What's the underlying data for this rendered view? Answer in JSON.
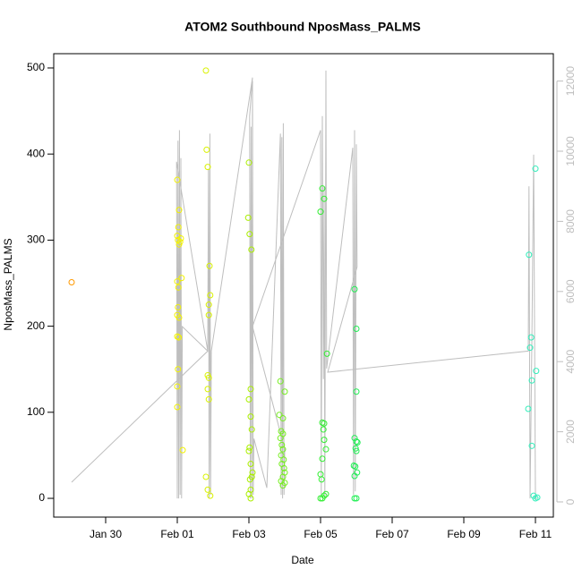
{
  "chart_data": {
    "type": "scatter",
    "title": "ATOM2 Southbound NposMass_PALMS",
    "x_label": "Date",
    "y_label": "NposMass_PALMS",
    "xlim": [
      -1.45,
      12.5
    ],
    "ylim": [
      -21.8,
      516.6
    ],
    "y2lim": [
      -434,
      12781
    ],
    "xticks": [
      {
        "value": 0,
        "label": "Jan 30"
      },
      {
        "value": 2,
        "label": "Feb 01"
      },
      {
        "value": 4,
        "label": "Feb 03"
      },
      {
        "value": 6,
        "label": "Feb 05"
      },
      {
        "value": 8,
        "label": "Feb 07"
      },
      {
        "value": 10,
        "label": "Feb 09"
      },
      {
        "value": 12,
        "label": "Feb 11"
      }
    ],
    "yticks": [
      0,
      100,
      200,
      300,
      400,
      500
    ],
    "y2ticks": [
      0,
      2000,
      4000,
      6000,
      8000,
      10000,
      12000
    ],
    "y2_color": "#bebebe",
    "series": [
      {
        "type": "line",
        "axis": "y2",
        "color": "#bebebe",
        "x": [
          -0.95,
          2.85,
          1.98,
          2.0,
          2.02,
          2.04,
          2.06,
          2.08,
          2.1,
          2.12,
          2.14,
          2.85,
          2.87,
          2.89,
          2.91,
          2.93,
          2.95,
          4.1,
          4.02,
          4.04,
          4.06,
          4.08,
          4.1,
          4.12,
          4.14,
          4.5,
          4.88,
          4.9,
          4.92,
          4.94,
          4.96,
          4.98,
          5.0,
          4.1,
          6.0,
          6.02,
          6.05,
          6.08,
          6.1,
          6.12,
          6.15,
          6.17,
          6.9,
          6.92,
          6.95,
          6.97,
          7.0,
          7.02,
          6.2,
          11.8,
          11.82,
          11.85,
          11.9,
          11.95,
          12.0,
          12.05
        ],
        "values": [
          560,
          4300,
          9700,
          100,
          10300,
          100,
          10600,
          200,
          9800,
          100,
          5000,
          4300,
          9500,
          100,
          10500,
          200,
          4300,
          12100,
          11000,
          100,
          10700,
          100,
          12000,
          200,
          1800,
          400,
          10500,
          200,
          10400,
          100,
          10800,
          200,
          1500,
          5000,
          10600,
          200,
          11000,
          3500,
          9000,
          100,
          12300,
          3800,
          10100,
          200,
          10600,
          300,
          10200,
          6700,
          3700,
          4300,
          9000,
          100,
          4500,
          9900,
          100,
          100
        ]
      },
      {
        "type": "scatter",
        "color": "#ff9900",
        "x": [
          -0.95
        ],
        "values": [
          251
        ]
      },
      {
        "type": "scatter",
        "color": "#f2f200",
        "x": [
          2.0,
          2.0,
          2.02,
          2.05,
          2.08,
          2.1,
          2.0,
          2.03,
          2.12,
          2.0,
          2.05,
          2.02,
          2.0,
          2.04,
          2.02,
          2.0,
          2.0,
          2.15,
          2.05,
          2.03
        ],
        "values": [
          370,
          305,
          300,
          295,
          298,
          302,
          252,
          245,
          256,
          213,
          210,
          222,
          188,
          187,
          150,
          130,
          106,
          56,
          335,
          315
        ]
      },
      {
        "type": "scatter",
        "color": "#d9f200",
        "x": [
          2.82,
          2.85,
          2.8,
          2.9,
          2.92,
          2.88,
          2.88,
          2.85,
          2.88,
          2.85,
          2.88,
          2.8,
          2.85,
          2.92
        ],
        "values": [
          405,
          385,
          497,
          270,
          236,
          225,
          213,
          143,
          140,
          127,
          115,
          25,
          10,
          3
        ]
      },
      {
        "type": "scatter",
        "color": "#aaee00",
        "x": [
          4.0,
          3.98,
          4.02,
          4.07,
          4.05,
          4.0,
          4.05,
          4.08,
          4.02,
          4.0,
          4.05,
          4.1,
          4.08,
          4.03,
          4.05,
          4.0,
          4.05
        ],
        "values": [
          390,
          326,
          307,
          289,
          127,
          115,
          95,
          80,
          59,
          55,
          40,
          30,
          25,
          22,
          10,
          5,
          0
        ]
      },
      {
        "type": "scatter",
        "color": "#77ee22",
        "x": [
          4.88,
          5.0,
          4.85,
          4.95,
          4.9,
          4.95,
          4.88,
          4.92,
          4.95,
          4.9,
          4.97,
          4.92,
          4.98,
          5.0,
          4.95,
          4.9,
          5.0,
          4.95
        ],
        "values": [
          136,
          124,
          97,
          93,
          78,
          75,
          70,
          62,
          57,
          50,
          45,
          40,
          35,
          30,
          25,
          20,
          18,
          15
        ]
      },
      {
        "type": "scatter",
        "color": "#33ee33",
        "x": [
          6.05,
          6.1,
          6.0,
          6.18,
          6.05,
          6.1,
          6.08,
          6.1,
          6.15,
          6.05,
          6.0,
          6.03,
          6.1,
          6.15,
          6.0,
          6.05
        ],
        "values": [
          360,
          348,
          333,
          168,
          88,
          87,
          80,
          68,
          57,
          46,
          28,
          22,
          3,
          5,
          0,
          0
        ]
      },
      {
        "type": "scatter",
        "color": "#22ee55",
        "x": [
          6.95,
          7.0,
          7.0,
          6.95,
          7.0,
          7.03,
          6.98,
          7.0,
          6.93,
          6.97,
          7.02,
          6.95,
          6.95,
          7.0
        ],
        "values": [
          243,
          197,
          124,
          70,
          66,
          65,
          58,
          55,
          38,
          37,
          30,
          26,
          0,
          0
        ]
      },
      {
        "type": "scatter",
        "color": "#33eebb",
        "x": [
          12.0,
          11.82,
          11.88,
          11.85,
          11.9,
          12.02,
          11.8,
          11.9,
          11.95,
          12.0,
          12.05
        ],
        "values": [
          383,
          283,
          187,
          175,
          137,
          148,
          104,
          61,
          3,
          0,
          1
        ]
      }
    ]
  }
}
